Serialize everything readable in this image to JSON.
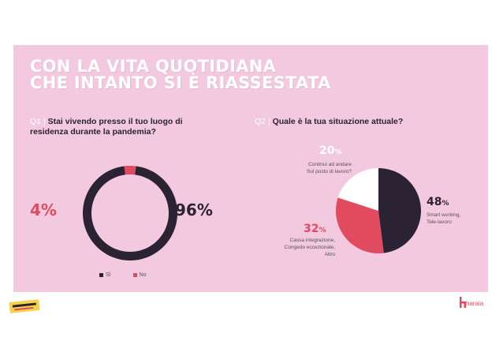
{
  "title": {
    "line1": "CON LA VITA QUOTIDIANA",
    "line2": "CHE INTANTO SI È RIASSESTATA"
  },
  "q1": {
    "number": "Q1",
    "separator": "|",
    "text": "Stai vivendo presso il tuo luogo di residenza durante la pandemia?"
  },
  "q2": {
    "number": "Q2",
    "separator": "|",
    "text": "Quale è la tua situazione attuale?"
  },
  "chart_data": [
    {
      "type": "pie",
      "variant": "donut",
      "categories": [
        "Sì",
        "No"
      ],
      "values": [
        96,
        4
      ],
      "value_labels": [
        "96%",
        "4%"
      ],
      "legend": [
        "Sì",
        "No"
      ],
      "legend_position": "bottom"
    },
    {
      "type": "pie",
      "categories": [
        "Smart working, Tele-lavoro",
        "Cassa integrazione, Congedo eccezionale, Altro",
        "Continui ad andare Sul posto di lavoro?"
      ],
      "values": [
        48,
        32,
        20
      ],
      "value_labels": [
        "48",
        "32",
        "20"
      ],
      "percent_sign": "%"
    }
  ],
  "pie_labels": {
    "l48": [
      "Smart working,",
      "Tele-lavoro"
    ],
    "l32": [
      "Cassa integrazione,",
      "Congedo eccezionale,",
      "Altro"
    ],
    "l20": [
      "Continui ad andare",
      "Sul posto di lavoro?"
    ]
  },
  "colors": {
    "dark": "#2b2233",
    "red": "#e04b5f",
    "white": "#ffffff",
    "panel": "#f2c9df"
  },
  "footer": {
    "brand_right": "haraia"
  }
}
